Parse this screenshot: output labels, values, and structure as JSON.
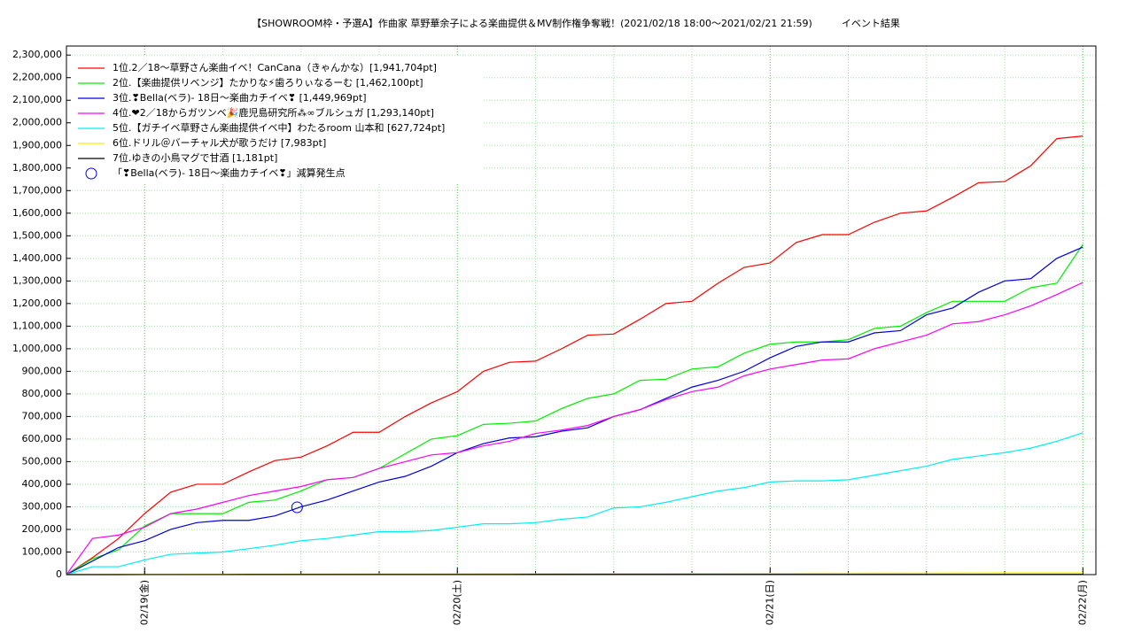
{
  "chart_data": {
    "type": "line",
    "title": "【SHOWROOM枠・予選A】作曲家 草野華余子による楽曲提供＆MV制作権争奪戦！(2021/02/18 18:00〜2021/02/21 21:59)　　　イベント結果",
    "x": [
      0,
      2,
      4,
      6,
      8,
      10,
      12,
      14,
      16,
      18,
      20,
      22,
      24,
      26,
      28,
      30,
      32,
      34,
      36,
      38,
      40,
      42,
      44,
      46,
      48,
      50,
      52,
      54,
      56,
      58,
      60,
      62,
      64,
      66,
      68,
      70,
      72,
      74,
      76,
      78
    ],
    "xlim": [
      0,
      79
    ],
    "xticks": [
      {
        "value": 6,
        "label": "02/19(金)"
      },
      {
        "value": 30,
        "label": "02/20(土)"
      },
      {
        "value": 54,
        "label": "02/21(日)"
      },
      {
        "value": 78,
        "label": "02/22(月)"
      }
    ],
    "ylim": [
      0,
      2340000
    ],
    "yticks": [
      {
        "value": 0,
        "label": "0"
      },
      {
        "value": 100000,
        "label": "100,000"
      },
      {
        "value": 200000,
        "label": "200,000"
      },
      {
        "value": 300000,
        "label": "300,000"
      },
      {
        "value": 400000,
        "label": "400,000"
      },
      {
        "value": 500000,
        "label": "500,000"
      },
      {
        "value": 600000,
        "label": "600,000"
      },
      {
        "value": 700000,
        "label": "700,000"
      },
      {
        "value": 800000,
        "label": "800,000"
      },
      {
        "value": 900000,
        "label": "900,000"
      },
      {
        "value": 1000000,
        "label": "1,000,000"
      },
      {
        "value": 1100000,
        "label": "1,100,000"
      },
      {
        "value": 1200000,
        "label": "1,200,000"
      },
      {
        "value": 1300000,
        "label": "1,300,000"
      },
      {
        "value": 1400000,
        "label": "1,400,000"
      },
      {
        "value": 1500000,
        "label": "1,500,000"
      },
      {
        "value": 1600000,
        "label": "1,600,000"
      },
      {
        "value": 1700000,
        "label": "1,700,000"
      },
      {
        "value": 1800000,
        "label": "1,800,000"
      },
      {
        "value": 1900000,
        "label": "1,900,000"
      },
      {
        "value": 2000000,
        "label": "2,000,000"
      },
      {
        "value": 2100000,
        "label": "2,100,000"
      },
      {
        "value": 2200000,
        "label": "2,200,000"
      },
      {
        "value": 2300000,
        "label": "2,300,000"
      }
    ],
    "grid": true,
    "legend": "upper left",
    "series": [
      {
        "name": "1位.2／18〜草野さん楽曲イベ！CanCana（きゃんかな）[1,941,704pt]",
        "color": "#ff0000",
        "values": [
          0,
          75000,
          160000,
          270000,
          365000,
          400000,
          400000,
          455000,
          505000,
          520000,
          570000,
          630000,
          630000,
          700000,
          760000,
          810000,
          900000,
          940000,
          945000,
          1000000,
          1060000,
          1065000,
          1130000,
          1200000,
          1210000,
          1290000,
          1360000,
          1380000,
          1470000,
          1505000,
          1505000,
          1560000,
          1600000,
          1610000,
          1670000,
          1735000,
          1740000,
          1810000,
          1930000,
          1941704
        ]
      },
      {
        "name": "2位.【楽曲提供リベンジ】たかりな⚡歯ろりぃなるーむ [1,462,100pt]",
        "color": "#00ee00",
        "values": [
          0,
          70000,
          110000,
          215000,
          270000,
          270000,
          270000,
          320000,
          330000,
          370000,
          420000,
          430000,
          470000,
          535000,
          600000,
          615000,
          665000,
          670000,
          680000,
          735000,
          780000,
          800000,
          860000,
          865000,
          910000,
          920000,
          980000,
          1020000,
          1030000,
          1030000,
          1040000,
          1090000,
          1100000,
          1160000,
          1210000,
          1210000,
          1210000,
          1270000,
          1290000,
          1462100
        ]
      },
      {
        "name": "3位.❣Bella(ベラ)- 18日〜楽曲カチイベ❣ [1,449,969pt]",
        "color": "#0000dd",
        "values": [
          0,
          60000,
          120000,
          150000,
          200000,
          230000,
          240000,
          240000,
          260000,
          300000,
          330000,
          370000,
          410000,
          435000,
          480000,
          540000,
          580000,
          605000,
          610000,
          635000,
          650000,
          700000,
          730000,
          780000,
          830000,
          860000,
          900000,
          960000,
          1010000,
          1030000,
          1030000,
          1070000,
          1080000,
          1150000,
          1180000,
          1250000,
          1300000,
          1310000,
          1400000,
          1449969
        ]
      },
      {
        "name": "4位.❤2／18からガツンベ🎉鹿児島研究所⁂∞ブルシュガ [1,293,140pt]",
        "color": "#ff00ff",
        "values": [
          0,
          160000,
          175000,
          210000,
          270000,
          290000,
          320000,
          350000,
          370000,
          390000,
          420000,
          430000,
          470000,
          500000,
          530000,
          540000,
          570000,
          590000,
          625000,
          640000,
          660000,
          700000,
          730000,
          775000,
          810000,
          830000,
          880000,
          910000,
          930000,
          950000,
          955000,
          1000000,
          1030000,
          1060000,
          1110000,
          1120000,
          1150000,
          1190000,
          1240000,
          1293140
        ]
      },
      {
        "name": "5位.【ガチイベ草野さん楽曲提供イベ中】わたるroom 山本和 [627,724pt]",
        "color": "#00eeee",
        "values": [
          0,
          35000,
          35000,
          65000,
          90000,
          95000,
          100000,
          115000,
          130000,
          150000,
          160000,
          175000,
          190000,
          190000,
          195000,
          210000,
          225000,
          225000,
          230000,
          245000,
          255000,
          295000,
          300000,
          320000,
          345000,
          370000,
          385000,
          410000,
          415000,
          415000,
          420000,
          440000,
          460000,
          480000,
          510000,
          525000,
          540000,
          560000,
          590000,
          627724
        ]
      },
      {
        "name": "6位.ドリル＠バーチャル犬が歌うだけ [7,983pt]",
        "color": "#ffee00",
        "values": [
          0,
          200,
          400,
          600,
          800,
          1000,
          1200,
          1500,
          1800,
          2000,
          2200,
          2500,
          2800,
          3000,
          3200,
          3500,
          3800,
          4000,
          4200,
          4400,
          4600,
          4800,
          5000,
          5200,
          5400,
          5600,
          5800,
          6000,
          6200,
          6400,
          6600,
          6800,
          7000,
          7200,
          7400,
          7600,
          7700,
          7800,
          7900,
          7983
        ]
      },
      {
        "name": "7位.ゆきの小鳥マグで甘酒 [1,181pt]",
        "color": "#000000",
        "values": [
          0,
          50,
          100,
          150,
          200,
          250,
          300,
          350,
          400,
          450,
          500,
          550,
          600,
          650,
          700,
          750,
          800,
          820,
          840,
          860,
          880,
          900,
          920,
          940,
          960,
          980,
          1000,
          1020,
          1040,
          1060,
          1080,
          1100,
          1110,
          1120,
          1130,
          1140,
          1150,
          1160,
          1170,
          1181
        ]
      }
    ],
    "annotation_points": {
      "name": "「❣Bella(ベラ)- 18日〜楽曲カチイベ❣」減算発生点",
      "color": "#0000ff",
      "x": [
        17.7
      ],
      "y": [
        298000
      ]
    }
  }
}
